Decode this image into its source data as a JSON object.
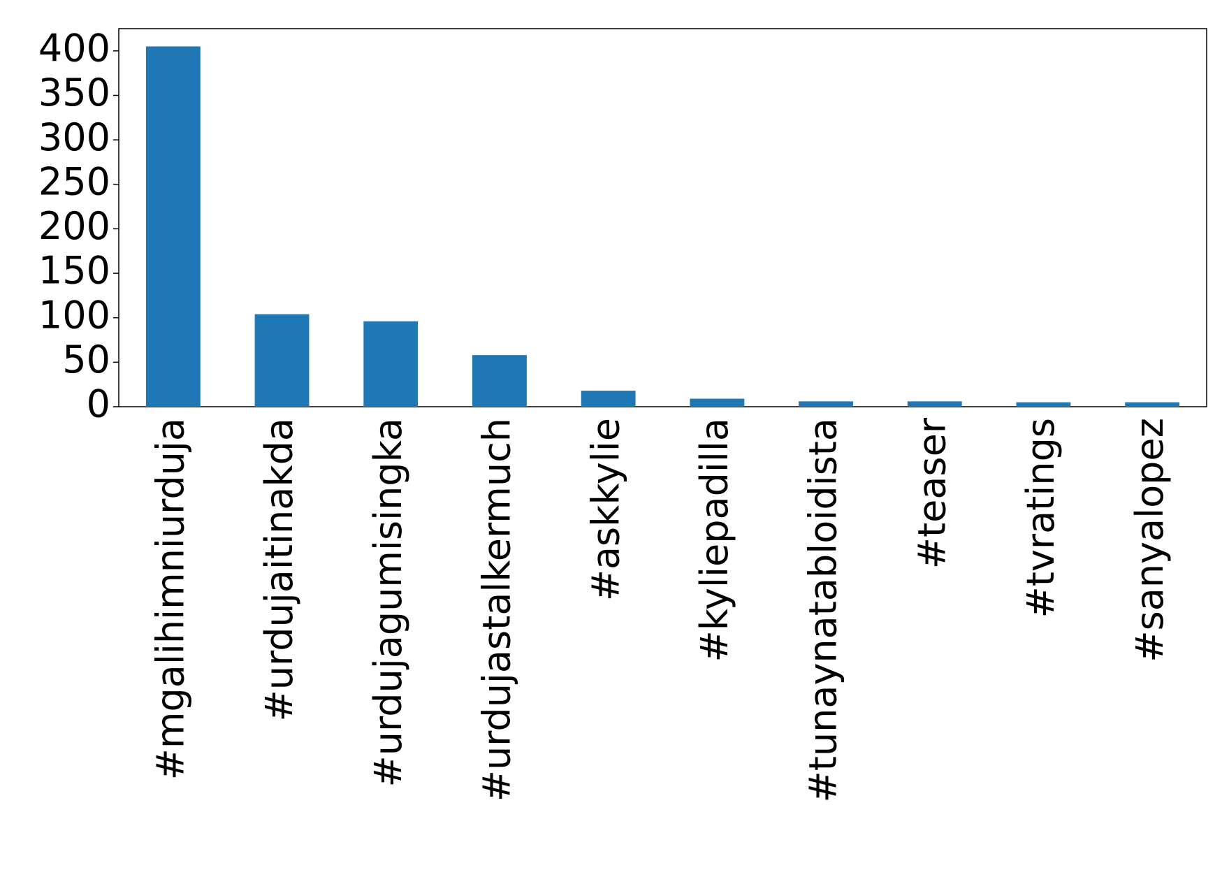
{
  "chart_data": {
    "type": "bar",
    "categories": [
      "#mgalihimniurduja",
      "#urdujaitinakda",
      "#urdujagumisingka",
      "#urdujastalkermuch",
      "#askkylie",
      "#kyliepadilla",
      "#tunaynatabloidista",
      "#teaser",
      "#tvratings",
      "#sanyalopez"
    ],
    "values": [
      405,
      104,
      96,
      58,
      18,
      9,
      6,
      6,
      5,
      5
    ],
    "color": "#1f77b4",
    "ylim": [
      0,
      425
    ],
    "yticks": [
      0,
      50,
      100,
      150,
      200,
      250,
      300,
      350,
      400
    ],
    "grid": false
  }
}
